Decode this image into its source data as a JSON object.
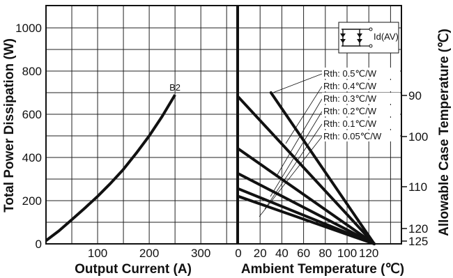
{
  "chart_data": [
    {
      "type": "line",
      "title": "",
      "xlabel": "Output Current (A)",
      "ylabel": "Total Power Dissipation (W)",
      "xlim": [
        0,
        370
      ],
      "ylim": [
        0,
        1000
      ],
      "x_ticks": [
        "100",
        "200",
        "300"
      ],
      "y_ticks": [
        "0",
        "200",
        "400",
        "600",
        "800",
        "1000"
      ],
      "grid": true,
      "series": [
        {
          "name": "B2",
          "x": [
            0,
            25,
            50,
            75,
            100,
            125,
            150,
            175,
            200,
            225,
            250
          ],
          "y": [
            15,
            60,
            112,
            165,
            220,
            280,
            345,
            420,
            500,
            590,
            690
          ]
        }
      ]
    },
    {
      "type": "line",
      "title": "",
      "xlabel": "Ambient Temperature (℃)",
      "ylabel": "Allowable Case Temperature (℃)",
      "xlim": [
        0,
        150
      ],
      "ylim": [
        0,
        1000
      ],
      "x_ticks": [
        "0",
        "20",
        "40",
        "60",
        "80",
        "100",
        "120"
      ],
      "right_ticks": [
        "90",
        "100",
        "110",
        "120",
        "125"
      ],
      "grid": true,
      "series": [
        {
          "name": "Rth: 0.5℃/W",
          "x": [
            30,
            125
          ],
          "y": [
            700,
            0
          ]
        },
        {
          "name": "Rth: 0.4℃/W",
          "x": [
            0,
            125
          ],
          "y": [
            680,
            0
          ]
        },
        {
          "name": "Rth: 0.3℃/W",
          "x": [
            0,
            125
          ],
          "y": [
            440,
            0
          ]
        },
        {
          "name": "Rth: 0.2℃/W",
          "x": [
            0,
            125
          ],
          "y": [
            325,
            0
          ]
        },
        {
          "name": "Rth: 0.1℃/W",
          "x": [
            0,
            125
          ],
          "y": [
            255,
            0
          ]
        },
        {
          "name": "Rth: 0.05℃/W",
          "x": [
            0,
            125
          ],
          "y": [
            220,
            0
          ]
        }
      ]
    }
  ],
  "inset_label": "Id(AV)"
}
